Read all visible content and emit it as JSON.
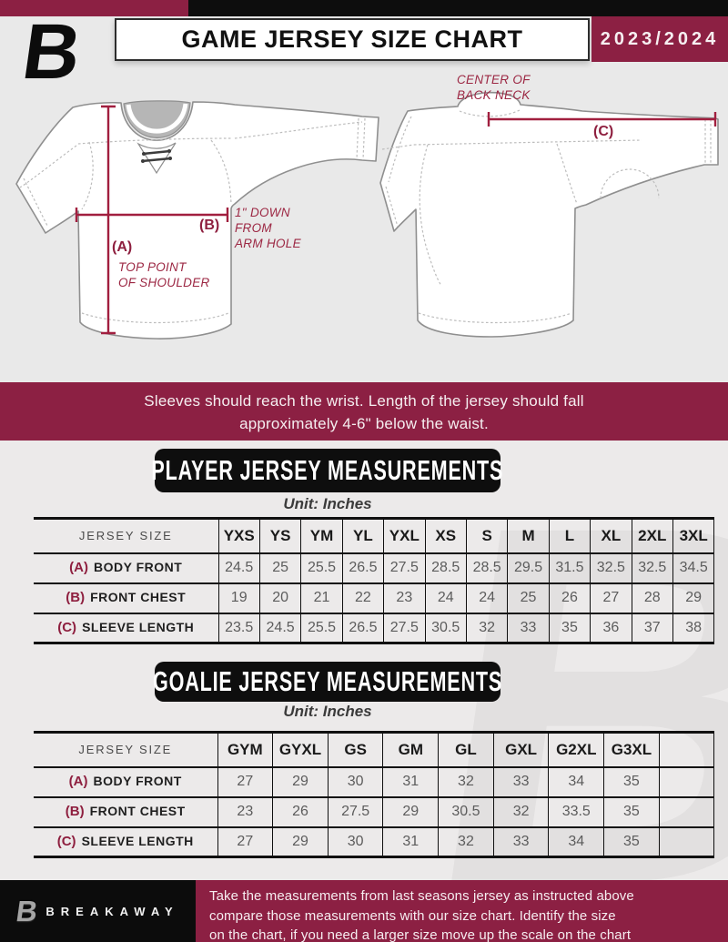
{
  "header": {
    "title": "GAME JERSEY SIZE CHART",
    "season": "2023/2024",
    "logo_letter": "B"
  },
  "diagram": {
    "front": {
      "a_label": "(A)",
      "a_note": "TOP POINT\nOF SHOULDER",
      "b_label": "(B)",
      "b_note": "1\" DOWN\nFROM\nARM HOLE"
    },
    "back": {
      "c_label": "(C)",
      "c_note": "CENTER OF\nBACK NECK"
    }
  },
  "banner": {
    "line1": "Sleeves should reach the wrist. Length of the jersey should fall",
    "line2": "approximately 4-6\" below the waist."
  },
  "player_section": {
    "title": "PLAYER JERSEY MEASUREMENTS",
    "unit": "Unit: Inches"
  },
  "goalie_section": {
    "title": "GOALIE JERSEY MEASUREMENTS",
    "unit": "Unit: Inches"
  },
  "player_table": {
    "header_label": "JERSEY SIZE",
    "sizes": [
      "YXS",
      "YS",
      "YM",
      "YL",
      "YXL",
      "XS",
      "S",
      "M",
      "L",
      "XL",
      "2XL",
      "3XL"
    ],
    "rows": [
      {
        "key": "(A)",
        "label": "BODY FRONT",
        "values": [
          "24.5",
          "25",
          "25.5",
          "26.5",
          "27.5",
          "28.5",
          "28.5",
          "29.5",
          "31.5",
          "32.5",
          "32.5",
          "34.5"
        ]
      },
      {
        "key": "(B)",
        "label": "FRONT CHEST",
        "values": [
          "19",
          "20",
          "21",
          "22",
          "23",
          "24",
          "24",
          "25",
          "26",
          "27",
          "28",
          "29"
        ]
      },
      {
        "key": "(C)",
        "label": "SLEEVE LENGTH",
        "values": [
          "23.5",
          "24.5",
          "25.5",
          "26.5",
          "27.5",
          "30.5",
          "32",
          "33",
          "35",
          "36",
          "37",
          "38"
        ]
      }
    ]
  },
  "goalie_table": {
    "header_label": "JERSEY SIZE",
    "sizes": [
      "GYM",
      "GYXL",
      "GS",
      "GM",
      "GL",
      "GXL",
      "G2XL",
      "G3XL",
      ""
    ],
    "rows": [
      {
        "key": "(A)",
        "label": "BODY FRONT",
        "values": [
          "27",
          "29",
          "30",
          "31",
          "32",
          "33",
          "34",
          "35",
          ""
        ]
      },
      {
        "key": "(B)",
        "label": "FRONT CHEST",
        "values": [
          "23",
          "26",
          "27.5",
          "29",
          "30.5",
          "32",
          "33.5",
          "35",
          ""
        ]
      },
      {
        "key": "(C)",
        "label": "SLEEVE LENGTH",
        "values": [
          "27",
          "29",
          "30",
          "31",
          "32",
          "33",
          "34",
          "35",
          ""
        ]
      }
    ]
  },
  "footer": {
    "brand": "BREAKAWAY",
    "logo_letter": "B",
    "lines": [
      "Take the measurements from last seasons jersey as instructed above",
      "compare those measurements  with our size chart. Identify the size",
      "on the chart, if you need a larger size move up the scale on the chart"
    ]
  },
  "colors": {
    "maroon": "#8c2043",
    "black": "#0d0d0d",
    "background": "#e9e9e9",
    "measure_line": "#a11f3f"
  }
}
